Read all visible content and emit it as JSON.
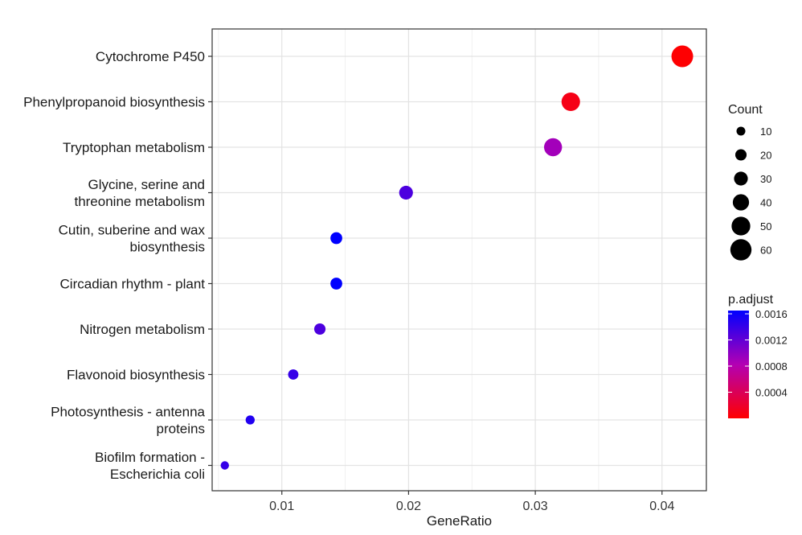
{
  "chart_data": {
    "type": "scatter",
    "xlabel": "GeneRatio",
    "ylabel": "",
    "xlim": [
      0.0045,
      0.0435
    ],
    "x_ticks": [
      "0.01",
      "0.02",
      "0.03",
      "0.04"
    ],
    "x_tick_values": [
      0.01,
      0.02,
      0.03,
      0.04
    ],
    "grid": true,
    "legend_position": "right",
    "categories": [
      [
        "Cytochrome P450"
      ],
      [
        "Phenylpropanoid biosynthesis"
      ],
      [
        "Tryptophan metabolism"
      ],
      [
        "Glycine, serine and",
        "threonine metabolism"
      ],
      [
        "Cutin, suberine and wax",
        "biosynthesis"
      ],
      [
        "Circadian rhythm - plant"
      ],
      [
        "Nitrogen metabolism"
      ],
      [
        "Flavonoid biosynthesis"
      ],
      [
        "Photosynthesis - antenna",
        "proteins"
      ],
      [
        "Biofilm formation -",
        "Escherichia coli"
      ]
    ],
    "points": [
      {
        "gene_ratio": 0.0416,
        "count": 62,
        "p_adjust": 1e-05
      },
      {
        "gene_ratio": 0.0328,
        "count": 49,
        "p_adjust": 0.0001
      },
      {
        "gene_ratio": 0.0314,
        "count": 47,
        "p_adjust": 0.0009
      },
      {
        "gene_ratio": 0.0198,
        "count": 30,
        "p_adjust": 0.0013
      },
      {
        "gene_ratio": 0.0143,
        "count": 22,
        "p_adjust": 0.0017
      },
      {
        "gene_ratio": 0.0143,
        "count": 22,
        "p_adjust": 0.0017
      },
      {
        "gene_ratio": 0.013,
        "count": 20,
        "p_adjust": 0.0013
      },
      {
        "gene_ratio": 0.0109,
        "count": 16,
        "p_adjust": 0.0014
      },
      {
        "gene_ratio": 0.0075,
        "count": 11,
        "p_adjust": 0.0015
      },
      {
        "gene_ratio": 0.0055,
        "count": 8,
        "p_adjust": 0.0014
      }
    ],
    "size_legend": {
      "title": "Count",
      "values": [
        10,
        20,
        30,
        40,
        50,
        60
      ],
      "labels": [
        "10",
        "20",
        "30",
        "40",
        "50",
        "60"
      ]
    },
    "color_legend": {
      "title": "p.adjust",
      "tick_labels": [
        "0.0016",
        "0.0012",
        "0.0008",
        "0.0004"
      ],
      "tick_values": [
        0.0016,
        0.0012,
        0.0008,
        0.0004
      ],
      "range": [
        0.0,
        0.00165
      ],
      "low_color": "#ff0000",
      "high_color": "#0000ff"
    }
  }
}
